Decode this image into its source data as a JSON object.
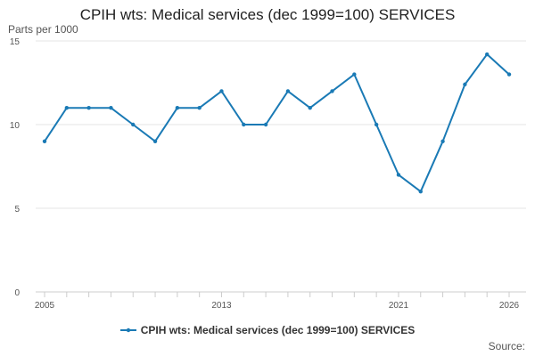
{
  "chart_data": {
    "type": "line",
    "title": "CPIH wts: Medical services (dec 1999=100) SERVICES",
    "ylabel": "Parts per 1000",
    "xlabel": "",
    "x": [
      2005,
      2006,
      2007,
      2008,
      2009,
      2010,
      2011,
      2012,
      2013,
      2014,
      2015,
      2016,
      2017,
      2018,
      2019,
      2020,
      2021,
      2022,
      2023,
      2024,
      2025,
      2026
    ],
    "x_tick_labels": [
      "2005",
      "2013",
      "2021",
      "2026"
    ],
    "x_tick_values": [
      2005,
      2013,
      2021,
      2026
    ],
    "y_ticks": [
      0,
      5,
      10,
      15
    ],
    "ylim": [
      0,
      15
    ],
    "xlim": [
      2005,
      2026
    ],
    "series": [
      {
        "name": "CPIH wts: Medical services (dec 1999=100) SERVICES",
        "color": "#1a7ab5",
        "values": [
          9,
          11,
          11,
          11,
          10,
          9,
          11,
          11,
          12,
          10,
          10,
          12,
          11,
          12,
          13,
          10,
          7,
          6,
          9,
          12.4,
          14.2,
          13
        ]
      }
    ],
    "grid": true,
    "legend_position": "bottom"
  },
  "footer": {
    "source_label": "Source:"
  }
}
